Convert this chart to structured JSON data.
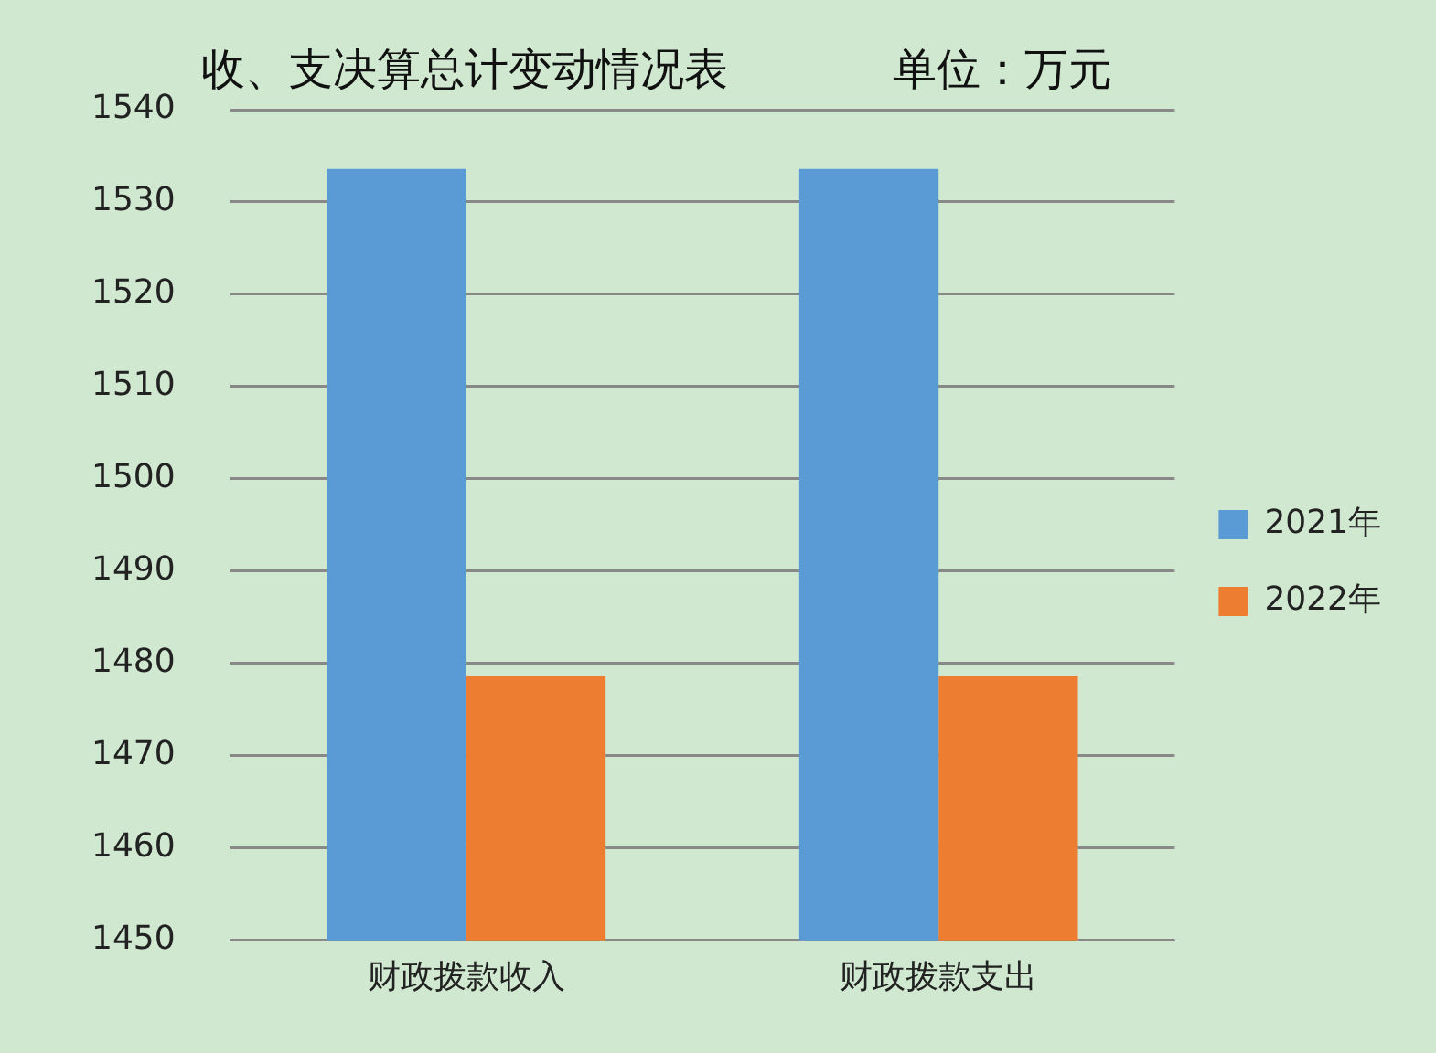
{
  "chart_data": {
    "type": "bar",
    "title": "收、支决算总计变动情况表",
    "subtitle": "单位：万元",
    "categories": [
      "财政拨款收入",
      "财政拨款支出"
    ],
    "series": [
      {
        "name": "2021年",
        "color": "#5b9bd5",
        "values": [
          1533.6,
          1533.6
        ]
      },
      {
        "name": "2022年",
        "color": "#ed7d31",
        "values": [
          1478.6,
          1478.6
        ]
      }
    ],
    "ylim": [
      1450,
      1540
    ],
    "yticks": [
      1450,
      1460,
      1470,
      1480,
      1490,
      1500,
      1510,
      1520,
      1530,
      1540
    ],
    "grid": "y",
    "legend": "right"
  }
}
